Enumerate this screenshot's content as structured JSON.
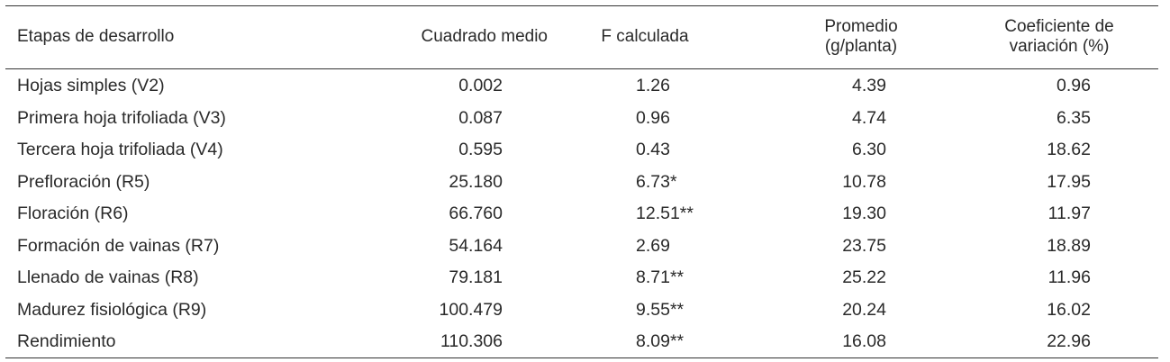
{
  "table": {
    "headers": {
      "stage": "Etapas de desarrollo",
      "mean_square": "Cuadrado medio",
      "f_calc": "F calculada",
      "mean_line1": "Promedio",
      "mean_line2": "(g/planta)",
      "cv_line1": "Coeficiente de",
      "cv_line2": "variación (%)"
    },
    "rows": [
      {
        "stage": "Hojas simples (V2)",
        "mean_square": "0.002",
        "f_calc": "1.26",
        "mean": "4.39",
        "cv": "0.96"
      },
      {
        "stage": "Primera hoja trifoliada (V3)",
        "mean_square": "0.087",
        "f_calc": "0.96",
        "mean": "4.74",
        "cv": "6.35"
      },
      {
        "stage": "Tercera hoja trifoliada (V4)",
        "mean_square": "0.595",
        "f_calc": "0.43",
        "mean": "6.30",
        "cv": "18.62"
      },
      {
        "stage": "Prefloración (R5)",
        "mean_square": "25.180",
        "f_calc": "6.73*",
        "mean": "10.78",
        "cv": "17.95"
      },
      {
        "stage": "Floración (R6)",
        "mean_square": "66.760",
        "f_calc": "12.51**",
        "mean": "19.30",
        "cv": "11.97"
      },
      {
        "stage": "Formación de vainas (R7)",
        "mean_square": "54.164",
        "f_calc": "2.69",
        "mean": "23.75",
        "cv": "18.89"
      },
      {
        "stage": "Llenado de vainas (R8)",
        "mean_square": "79.181",
        "f_calc": "8.71**",
        "mean": "25.22",
        "cv": "11.96"
      },
      {
        "stage": "Madurez fisiológica (R9)",
        "mean_square": "100.479",
        "f_calc": "9.55**",
        "mean": "20.24",
        "cv": "16.02"
      },
      {
        "stage": "Rendimiento",
        "mean_square": "110.306",
        "f_calc": "8.09**",
        "mean": "16.08",
        "cv": "22.96"
      }
    ]
  }
}
